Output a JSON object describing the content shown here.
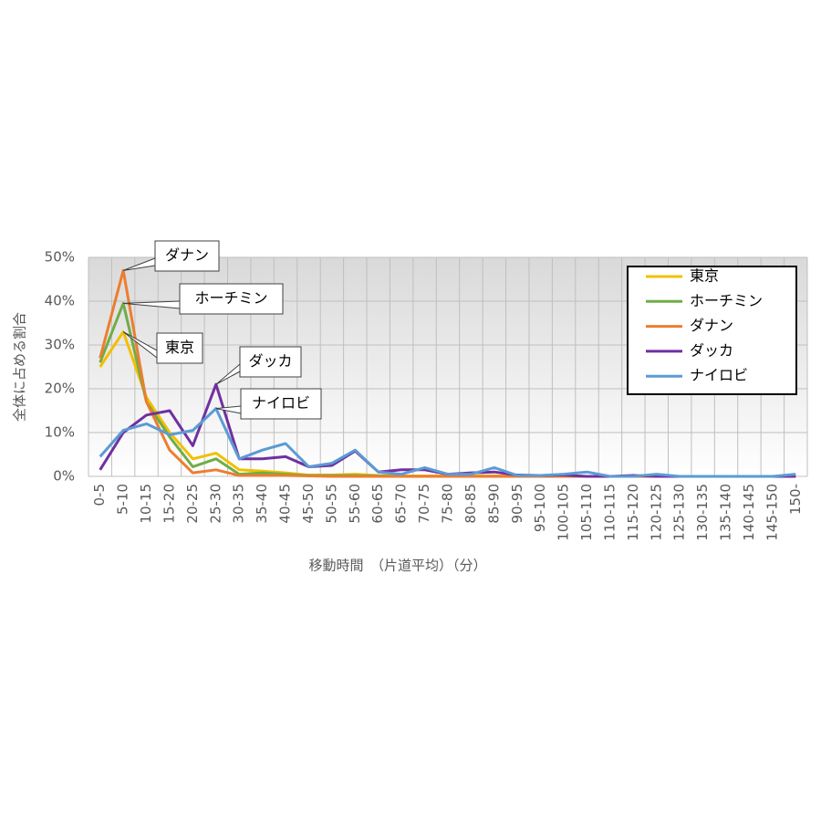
{
  "chart_data": {
    "type": "line",
    "y_label": "全体に占める割合",
    "x_label": "移動時間　（片道平均）（分）",
    "categories": [
      "0-5",
      "5-10",
      "10-15",
      "15-20",
      "20-25",
      "25-30",
      "30-35",
      "35-40",
      "40-45",
      "45-50",
      "50-55",
      "55-60",
      "60-65",
      "65-70",
      "70-75",
      "75-80",
      "80-85",
      "85-90",
      "90-95",
      "95-100",
      "100-105",
      "105-110",
      "110-115",
      "115-120",
      "120-125",
      "125-130",
      "130-135",
      "135-140",
      "140-145",
      "145-150",
      "150-"
    ],
    "ylim": [
      0,
      50
    ],
    "yticks": [
      {
        "value": 0,
        "label": "0%"
      },
      {
        "value": 10,
        "label": "10%"
      },
      {
        "value": 20,
        "label": "20%"
      },
      {
        "value": 30,
        "label": "30%"
      },
      {
        "value": 40,
        "label": "40%"
      },
      {
        "value": 50,
        "label": "50%"
      }
    ],
    "grid": true,
    "legend_position": "upper right",
    "series": [
      {
        "name": "東京",
        "color": "#f2c000",
        "values": [
          25,
          33,
          18,
          10,
          4,
          5.3,
          1.5,
          1.2,
          0.8,
          0.3,
          0.3,
          0.5,
          0.2,
          0.1,
          0.1,
          0.1,
          0.1,
          0.1,
          0.1,
          0,
          0,
          0,
          0,
          0,
          0,
          0,
          0,
          0,
          0,
          0,
          0
        ]
      },
      {
        "name": "ホーチミン",
        "color": "#70ad47",
        "values": [
          26,
          39.5,
          17,
          9,
          2.2,
          4,
          0.5,
          0.8,
          0.5,
          0.2,
          0.2,
          0.2,
          0.1,
          0,
          0,
          0,
          0,
          0,
          0,
          0,
          0,
          0,
          0,
          0,
          0,
          0,
          0,
          0,
          0,
          0,
          0
        ]
      },
      {
        "name": "ダナン",
        "color": "#ed7d31",
        "values": [
          27,
          47,
          17,
          6,
          0.8,
          1.5,
          0.2,
          0.2,
          0.2,
          0.1,
          0,
          0,
          0,
          0,
          0,
          0,
          0,
          0,
          0,
          0,
          0,
          0,
          0,
          0,
          0,
          0,
          0,
          0,
          0,
          0,
          0
        ]
      },
      {
        "name": "ダッカ",
        "color": "#7030a0",
        "values": [
          1.5,
          10,
          14,
          15,
          7,
          21,
          4,
          4,
          4.5,
          2.2,
          2.5,
          5.8,
          1,
          1.5,
          1.5,
          0.5,
          0.8,
          1,
          0.3,
          0.2,
          0.3,
          0,
          0,
          0.2,
          0,
          0,
          0,
          0,
          0,
          0,
          0
        ]
      },
      {
        "name": "ナイロビ",
        "color": "#5b9bd5",
        "values": [
          4.5,
          10.5,
          12,
          9.5,
          10.5,
          15.5,
          4,
          6,
          7.5,
          2.2,
          3,
          6,
          1,
          0.5,
          2,
          0.5,
          0.5,
          2,
          0.2,
          0.2,
          0.5,
          1,
          0,
          0,
          0.5,
          0,
          0,
          0,
          0,
          0,
          0.5
        ]
      }
    ],
    "annotations": [
      {
        "text": "ダナン",
        "category": "5-10"
      },
      {
        "text": "ホーチミン",
        "category": "5-10"
      },
      {
        "text": "東京",
        "category": "5-10"
      },
      {
        "text": "ダッカ",
        "category": "25-30"
      },
      {
        "text": "ナイロビ",
        "category": "25-30"
      }
    ]
  }
}
